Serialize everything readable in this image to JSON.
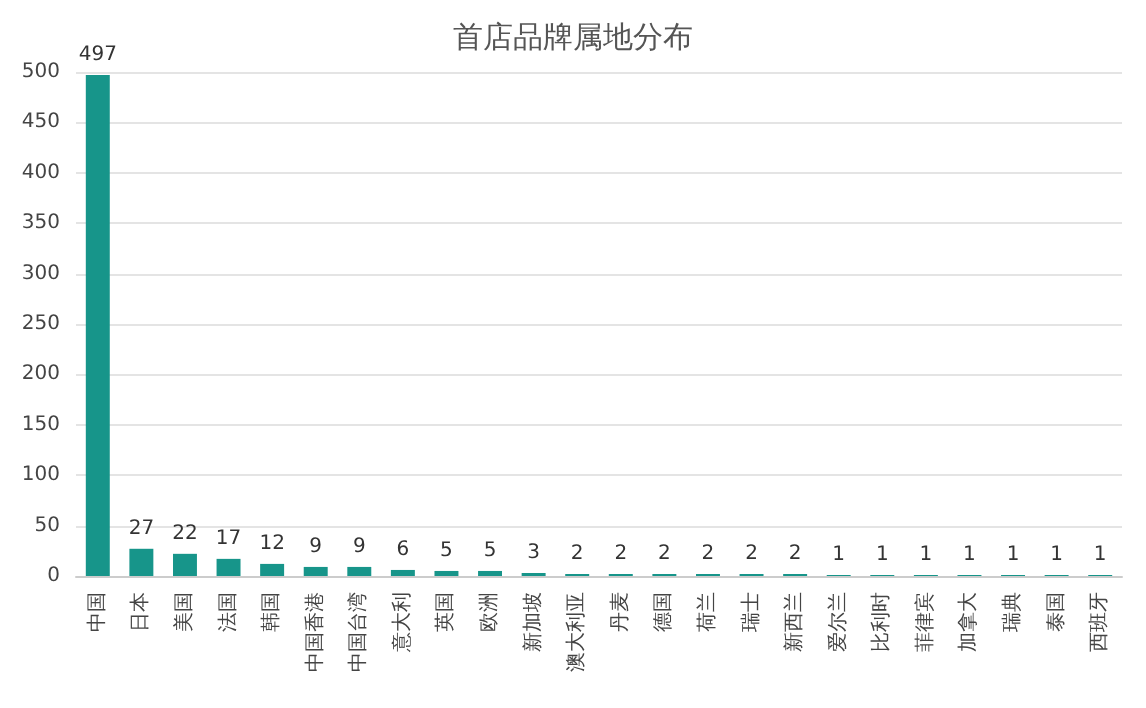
{
  "chart_data": {
    "type": "bar",
    "title": "首店品牌属地分布",
    "categories": [
      "中国",
      "日本",
      "美国",
      "法国",
      "韩国",
      "中国香港",
      "中国台湾",
      "意大利",
      "英国",
      "欧洲",
      "新加坡",
      "澳大利亚",
      "丹麦",
      "德国",
      "荷兰",
      "瑞士",
      "新西兰",
      "爱尔兰",
      "比利时",
      "菲律宾",
      "加拿大",
      "瑞典",
      "泰国",
      "西班牙"
    ],
    "values": [
      497,
      27,
      22,
      17,
      12,
      9,
      9,
      6,
      5,
      5,
      3,
      2,
      2,
      2,
      2,
      2,
      2,
      1,
      1,
      1,
      1,
      1,
      1,
      1
    ],
    "color": "#17958a",
    "ylim": [
      0,
      500
    ],
    "yticks": [
      0,
      50,
      100,
      150,
      200,
      250,
      300,
      350,
      400,
      450,
      500
    ],
    "grid": "y",
    "data_labels": true
  }
}
